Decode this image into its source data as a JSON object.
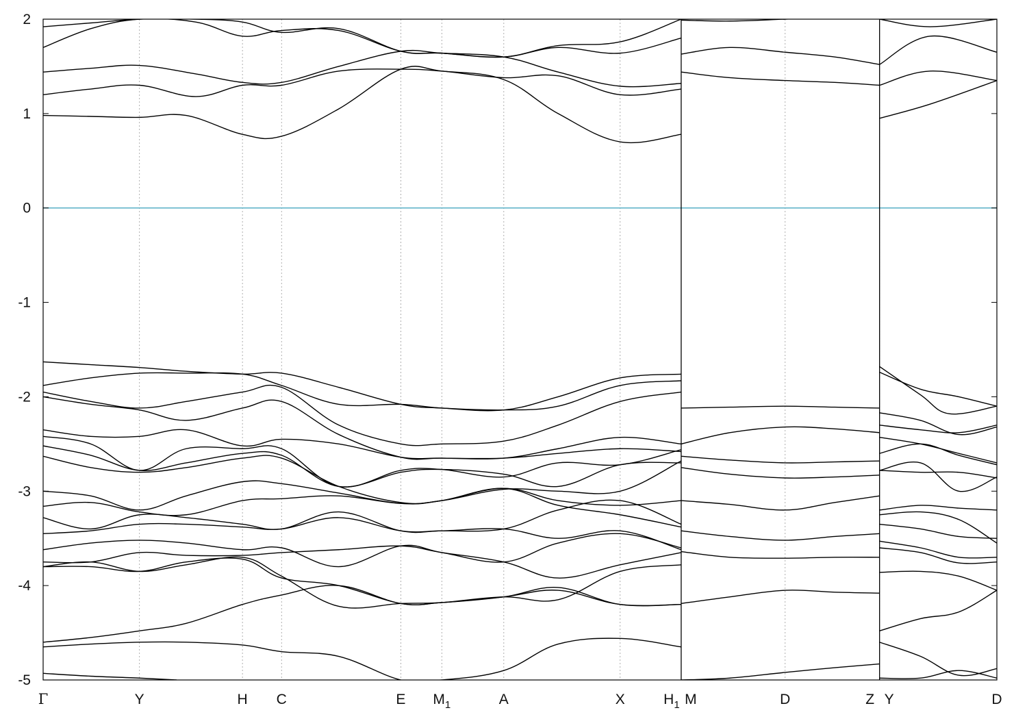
{
  "chart_data": {
    "type": "line",
    "title": "",
    "xlabel": "",
    "ylabel": "",
    "ylim": [
      -5,
      2
    ],
    "yticks": [
      2,
      1,
      0,
      -1,
      -2,
      -3,
      -4,
      -5
    ],
    "ytick_labels": [
      "2",
      "1",
      "0",
      "-1",
      "-2",
      "-3",
      "-4",
      "-5"
    ],
    "kpoints": [
      {
        "label": "Γ",
        "x": 0.0
      },
      {
        "label": "Y",
        "x": 0.101
      },
      {
        "label": "H",
        "x": 0.209
      },
      {
        "label": "C",
        "x": 0.25
      },
      {
        "label": "E",
        "x": 0.375
      },
      {
        "label": "M",
        "sub": "1",
        "x": 0.418
      },
      {
        "label": "A",
        "x": 0.483
      },
      {
        "label": "X",
        "x": 0.605
      },
      {
        "label": "H",
        "sub": "1",
        "x": 0.669
      },
      {
        "label": "M",
        "x": 0.669
      },
      {
        "label": "D",
        "x": 0.778
      },
      {
        "label": "Z",
        "x": 0.877
      },
      {
        "label": "Y",
        "x": 0.877
      },
      {
        "label": "D",
        "x": 1.0
      }
    ],
    "discontinuities": [
      0.669,
      0.877
    ],
    "fermi_level": 0,
    "fermi_color": "#5fb3c8",
    "line_color": "#000000",
    "grid": "vertical dotted at k-points",
    "series": [
      {
        "x": [
          0.0,
          0.05,
          0.101,
          0.15,
          0.209,
          0.25,
          0.31,
          0.375,
          0.418,
          0.483,
          0.54,
          0.605,
          0.669
        ],
        "y": [
          0.98,
          0.97,
          0.96,
          0.98,
          0.78,
          0.76,
          1.05,
          1.47,
          1.45,
          1.36,
          1.0,
          0.7,
          0.78
        ]
      },
      {
        "x": [
          0.0,
          0.05,
          0.101,
          0.16,
          0.209,
          0.25,
          0.31,
          0.375,
          0.418,
          0.483,
          0.54,
          0.605,
          0.669
        ],
        "y": [
          1.2,
          1.26,
          1.3,
          1.18,
          1.3,
          1.3,
          1.45,
          1.47,
          1.45,
          1.38,
          1.4,
          1.2,
          1.26
        ]
      },
      {
        "x": [
          0.0,
          0.05,
          0.101,
          0.16,
          0.209,
          0.25,
          0.31,
          0.375,
          0.418,
          0.483,
          0.54,
          0.605,
          0.669
        ],
        "y": [
          1.44,
          1.48,
          1.51,
          1.42,
          1.33,
          1.33,
          1.5,
          1.66,
          1.64,
          1.6,
          1.44,
          1.29,
          1.32
        ]
      },
      {
        "x": [
          0.0,
          0.05,
          0.101,
          0.16,
          0.209,
          0.25,
          0.31,
          0.375,
          0.418,
          0.483,
          0.54,
          0.605,
          0.669
        ],
        "y": [
          1.7,
          1.9,
          2.0,
          1.97,
          1.82,
          1.88,
          1.88,
          1.66,
          1.64,
          1.6,
          1.7,
          1.64,
          1.8
        ]
      },
      {
        "x": [
          0.0,
          0.05,
          0.101,
          0.16,
          0.209,
          0.25,
          0.31,
          0.375,
          0.418,
          0.483,
          0.54,
          0.605,
          0.669
        ],
        "y": [
          1.92,
          1.96,
          2.0,
          2.0,
          1.97,
          1.86,
          1.9,
          1.66,
          1.64,
          1.6,
          1.72,
          1.76,
          2.0
        ]
      },
      {
        "x": [
          0.669,
          0.72,
          0.778,
          0.83,
          0.877
        ],
        "y": [
          1.44,
          1.38,
          1.35,
          1.33,
          1.3
        ]
      },
      {
        "x": [
          0.669,
          0.72,
          0.778,
          0.83,
          0.877
        ],
        "y": [
          1.63,
          1.7,
          1.65,
          1.6,
          1.52
        ]
      },
      {
        "x": [
          0.669,
          0.72,
          0.778,
          0.83,
          0.877
        ],
        "y": [
          1.99,
          1.98,
          2.0,
          2.02,
          2.05
        ]
      },
      {
        "x": [
          0.877,
          0.93,
          1.0
        ],
        "y": [
          0.95,
          1.1,
          1.35
        ]
      },
      {
        "x": [
          0.877,
          0.93,
          1.0
        ],
        "y": [
          1.3,
          1.45,
          1.35
        ]
      },
      {
        "x": [
          0.877,
          0.93,
          1.0
        ],
        "y": [
          1.52,
          1.82,
          1.65
        ]
      },
      {
        "x": [
          0.877,
          0.93,
          1.0
        ],
        "y": [
          2.0,
          1.92,
          2.0
        ]
      },
      {
        "x": [
          0.0,
          0.05,
          0.101,
          0.15,
          0.209,
          0.25,
          0.31,
          0.375,
          0.418,
          0.483,
          0.54,
          0.605,
          0.669
        ],
        "y": [
          -1.63,
          -1.66,
          -1.69,
          -1.73,
          -1.76,
          -1.75,
          -1.9,
          -2.08,
          -2.12,
          -2.14,
          -2.0,
          -1.8,
          -1.76
        ]
      },
      {
        "x": [
          0.0,
          0.05,
          0.101,
          0.15,
          0.209,
          0.25,
          0.31,
          0.375,
          0.418,
          0.483,
          0.54,
          0.605,
          0.669
        ],
        "y": [
          -1.88,
          -1.8,
          -1.75,
          -1.75,
          -1.76,
          -1.88,
          -2.08,
          -2.08,
          -2.12,
          -2.14,
          -2.1,
          -1.88,
          -1.83
        ]
      },
      {
        "x": [
          0.0,
          0.05,
          0.101,
          0.15,
          0.209,
          0.25,
          0.31,
          0.375,
          0.418,
          0.483,
          0.54,
          0.605,
          0.669
        ],
        "y": [
          -1.95,
          -2.05,
          -2.12,
          -2.05,
          -1.95,
          -1.9,
          -2.3,
          -2.5,
          -2.5,
          -2.47,
          -2.3,
          -2.05,
          -1.95
        ]
      },
      {
        "x": [
          0.0,
          0.05,
          0.101,
          0.15,
          0.209,
          0.25,
          0.31,
          0.375,
          0.418,
          0.483,
          0.54,
          0.605,
          0.669
        ],
        "y": [
          -2.0,
          -2.08,
          -2.14,
          -2.25,
          -2.12,
          -2.05,
          -2.4,
          -2.64,
          -2.65,
          -2.65,
          -2.55,
          -2.43,
          -2.5
        ]
      },
      {
        "x": [
          0.0,
          0.05,
          0.101,
          0.15,
          0.209,
          0.25,
          0.31,
          0.375,
          0.418,
          0.483,
          0.54,
          0.605,
          0.669
        ],
        "y": [
          -2.35,
          -2.42,
          -2.42,
          -2.35,
          -2.52,
          -2.45,
          -2.5,
          -2.64,
          -2.65,
          -2.65,
          -2.6,
          -2.55,
          -2.58
        ]
      },
      {
        "x": [
          0.0,
          0.05,
          0.101,
          0.15,
          0.209,
          0.25,
          0.31,
          0.375,
          0.418,
          0.483,
          0.54,
          0.605,
          0.669
        ],
        "y": [
          -2.42,
          -2.5,
          -2.78,
          -2.55,
          -2.55,
          -2.55,
          -2.95,
          -2.78,
          -2.77,
          -2.85,
          -2.7,
          -2.72,
          -2.56
        ]
      },
      {
        "x": [
          0.0,
          0.05,
          0.101,
          0.15,
          0.209,
          0.25,
          0.31,
          0.375,
          0.418,
          0.483,
          0.54,
          0.605,
          0.669
        ],
        "y": [
          -2.52,
          -2.62,
          -2.78,
          -2.7,
          -2.6,
          -2.62,
          -2.95,
          -2.8,
          -2.77,
          -2.82,
          -2.95,
          -2.72,
          -2.7
        ]
      },
      {
        "x": [
          0.0,
          0.05,
          0.101,
          0.15,
          0.209,
          0.25,
          0.31,
          0.375,
          0.418,
          0.483,
          0.54,
          0.605,
          0.669
        ],
        "y": [
          -2.63,
          -2.75,
          -2.8,
          -2.75,
          -2.65,
          -2.65,
          -2.95,
          -3.12,
          -3.1,
          -2.98,
          -3.0,
          -3.0,
          -2.68
        ]
      },
      {
        "x": [
          0.0,
          0.05,
          0.101,
          0.15,
          0.209,
          0.25,
          0.31,
          0.375,
          0.418,
          0.483,
          0.54,
          0.605,
          0.669
        ],
        "y": [
          -3.0,
          -3.05,
          -3.2,
          -3.05,
          -2.9,
          -2.92,
          -3.02,
          -3.13,
          -3.1,
          -2.97,
          -3.1,
          -3.15,
          -3.1
        ]
      },
      {
        "x": [
          0.0,
          0.05,
          0.101,
          0.15,
          0.209,
          0.25,
          0.31,
          0.375,
          0.418,
          0.483,
          0.54,
          0.605,
          0.669
        ],
        "y": [
          -3.16,
          -3.12,
          -3.22,
          -3.25,
          -3.1,
          -3.08,
          -3.05,
          -3.13,
          -3.1,
          -2.97,
          -3.15,
          -3.25,
          -3.38
        ]
      },
      {
        "x": [
          0.0,
          0.05,
          0.101,
          0.15,
          0.209,
          0.25,
          0.31,
          0.375,
          0.418,
          0.483,
          0.54,
          0.605,
          0.669
        ],
        "y": [
          -3.28,
          -3.4,
          -3.25,
          -3.28,
          -3.35,
          -3.4,
          -3.22,
          -3.42,
          -3.42,
          -3.4,
          -3.2,
          -3.1,
          -3.35
        ]
      },
      {
        "x": [
          0.0,
          0.05,
          0.101,
          0.15,
          0.209,
          0.25,
          0.31,
          0.375,
          0.418,
          0.483,
          0.54,
          0.605,
          0.669
        ],
        "y": [
          -3.45,
          -3.42,
          -3.35,
          -3.35,
          -3.38,
          -3.4,
          -3.28,
          -3.42,
          -3.42,
          -3.4,
          -3.5,
          -3.42,
          -3.62
        ]
      },
      {
        "x": [
          0.0,
          0.05,
          0.101,
          0.15,
          0.209,
          0.25,
          0.31,
          0.375,
          0.418,
          0.483,
          0.54,
          0.605,
          0.669
        ],
        "y": [
          -3.62,
          -3.55,
          -3.52,
          -3.55,
          -3.62,
          -3.6,
          -3.8,
          -3.58,
          -3.65,
          -3.75,
          -3.92,
          -3.78,
          -3.65
        ]
      },
      {
        "x": [
          0.0,
          0.05,
          0.101,
          0.15,
          0.209,
          0.25,
          0.31,
          0.375,
          0.418,
          0.483,
          0.54,
          0.605,
          0.669
        ],
        "y": [
          -3.75,
          -3.75,
          -3.65,
          -3.68,
          -3.68,
          -3.65,
          -3.62,
          -3.58,
          -3.65,
          -3.75,
          -3.55,
          -3.45,
          -3.6
        ]
      },
      {
        "x": [
          0.0,
          0.05,
          0.101,
          0.15,
          0.209,
          0.25,
          0.31,
          0.375,
          0.418,
          0.483,
          0.54,
          0.605,
          0.669
        ],
        "y": [
          -3.8,
          -3.8,
          -3.85,
          -3.75,
          -3.72,
          -3.92,
          -4.0,
          -4.19,
          -4.18,
          -4.12,
          -4.15,
          -3.85,
          -3.78
        ]
      },
      {
        "x": [
          0.0,
          0.05,
          0.101,
          0.15,
          0.209,
          0.25,
          0.31,
          0.375,
          0.418,
          0.483,
          0.54,
          0.605,
          0.669
        ],
        "y": [
          -3.8,
          -3.75,
          -3.85,
          -3.78,
          -3.7,
          -3.9,
          -4.22,
          -4.19,
          -4.18,
          -4.12,
          -4.05,
          -4.2,
          -4.2
        ]
      },
      {
        "x": [
          0.0,
          0.05,
          0.101,
          0.15,
          0.209,
          0.25,
          0.31,
          0.375,
          0.418,
          0.483,
          0.54,
          0.605,
          0.669
        ],
        "y": [
          -4.6,
          -4.55,
          -4.48,
          -4.4,
          -4.2,
          -4.1,
          -4.0,
          -4.19,
          -4.18,
          -4.12,
          -4.02,
          -4.2,
          -4.2
        ]
      },
      {
        "x": [
          0.0,
          0.05,
          0.101,
          0.15,
          0.209,
          0.25,
          0.31,
          0.375,
          0.418,
          0.483,
          0.54,
          0.605,
          0.669
        ],
        "y": [
          -4.65,
          -4.62,
          -4.6,
          -4.6,
          -4.63,
          -4.7,
          -4.75,
          -5.0,
          -5.0,
          -4.9,
          -4.62,
          -4.56,
          -4.65
        ]
      },
      {
        "x": [
          0.0,
          0.05,
          0.101,
          0.14
        ],
        "y": [
          -4.93,
          -4.96,
          -4.98,
          -5.0
        ]
      },
      {
        "x": [
          0.669,
          0.72,
          0.778,
          0.83,
          0.877
        ],
        "y": [
          -2.12,
          -2.11,
          -2.1,
          -2.11,
          -2.12
        ]
      },
      {
        "x": [
          0.669,
          0.72,
          0.778,
          0.83,
          0.877
        ],
        "y": [
          -2.5,
          -2.38,
          -2.32,
          -2.34,
          -2.38
        ]
      },
      {
        "x": [
          0.669,
          0.72,
          0.778,
          0.83,
          0.877
        ],
        "y": [
          -2.63,
          -2.67,
          -2.7,
          -2.69,
          -2.68
        ]
      },
      {
        "x": [
          0.669,
          0.72,
          0.778,
          0.83,
          0.877
        ],
        "y": [
          -2.75,
          -2.82,
          -2.86,
          -2.85,
          -2.83
        ]
      },
      {
        "x": [
          0.669,
          0.72,
          0.778,
          0.83,
          0.877
        ],
        "y": [
          -3.1,
          -3.14,
          -3.2,
          -3.12,
          -3.05
        ]
      },
      {
        "x": [
          0.669,
          0.72,
          0.778,
          0.83,
          0.877
        ],
        "y": [
          -3.42,
          -3.48,
          -3.52,
          -3.48,
          -3.45
        ]
      },
      {
        "x": [
          0.669,
          0.72,
          0.778,
          0.83,
          0.877
        ],
        "y": [
          -3.64,
          -3.7,
          -3.71,
          -3.7,
          -3.7
        ]
      },
      {
        "x": [
          0.669,
          0.72,
          0.778,
          0.83,
          0.877
        ],
        "y": [
          -4.19,
          -4.12,
          -4.05,
          -4.07,
          -4.08
        ]
      },
      {
        "x": [
          0.669,
          0.72,
          0.778,
          0.83,
          0.877
        ],
        "y": [
          -5.0,
          -4.98,
          -4.92,
          -4.87,
          -4.83
        ]
      },
      {
        "x": [
          0.877,
          0.92,
          0.95,
          1.0
        ],
        "y": [
          -1.68,
          -1.98,
          -2.18,
          -2.1
        ]
      },
      {
        "x": [
          0.877,
          0.92,
          0.96,
          1.0
        ],
        "y": [
          -1.74,
          -1.92,
          -2.0,
          -2.1
        ]
      },
      {
        "x": [
          0.877,
          0.92,
          0.96,
          1.0
        ],
        "y": [
          -2.17,
          -2.25,
          -2.4,
          -2.32
        ]
      },
      {
        "x": [
          0.877,
          0.92,
          0.96,
          1.0
        ],
        "y": [
          -2.3,
          -2.35,
          -2.38,
          -2.3
        ]
      },
      {
        "x": [
          0.877,
          0.92,
          0.96,
          1.0
        ],
        "y": [
          -2.43,
          -2.5,
          -2.6,
          -2.7
        ]
      },
      {
        "x": [
          0.877,
          0.92,
          0.96,
          1.0
        ],
        "y": [
          -2.6,
          -2.5,
          -2.62,
          -2.72
        ]
      },
      {
        "x": [
          0.877,
          0.92,
          0.96,
          1.0
        ],
        "y": [
          -2.78,
          -2.7,
          -3.0,
          -2.85
        ]
      },
      {
        "x": [
          0.877,
          0.92,
          0.96,
          1.0
        ],
        "y": [
          -2.78,
          -2.8,
          -2.8,
          -2.86
        ]
      },
      {
        "x": [
          0.877,
          0.92,
          0.96,
          1.0
        ],
        "y": [
          -3.2,
          -3.15,
          -3.18,
          -3.2
        ]
      },
      {
        "x": [
          0.877,
          0.92,
          0.96,
          1.0
        ],
        "y": [
          -3.25,
          -3.22,
          -3.3,
          -3.55
        ]
      },
      {
        "x": [
          0.877,
          0.92,
          0.96,
          1.0
        ],
        "y": [
          -3.35,
          -3.4,
          -3.48,
          -3.5
        ]
      },
      {
        "x": [
          0.877,
          0.92,
          0.96,
          1.0
        ],
        "y": [
          -3.53,
          -3.6,
          -3.7,
          -3.7
        ]
      },
      {
        "x": [
          0.877,
          0.92,
          0.96,
          1.0
        ],
        "y": [
          -3.6,
          -3.65,
          -3.76,
          -3.75
        ]
      },
      {
        "x": [
          0.877,
          0.92,
          0.96,
          1.0
        ],
        "y": [
          -3.86,
          -3.85,
          -3.9,
          -4.05
        ]
      },
      {
        "x": [
          0.877,
          0.92,
          0.96,
          1.0
        ],
        "y": [
          -4.48,
          -4.35,
          -4.28,
          -4.05
        ]
      },
      {
        "x": [
          0.877,
          0.92,
          0.96,
          1.0
        ],
        "y": [
          -4.6,
          -4.75,
          -4.95,
          -4.88
        ]
      },
      {
        "x": [
          0.877,
          0.92,
          0.96,
          1.0
        ],
        "y": [
          -4.98,
          -4.98,
          -4.9,
          -4.98
        ]
      }
    ]
  }
}
